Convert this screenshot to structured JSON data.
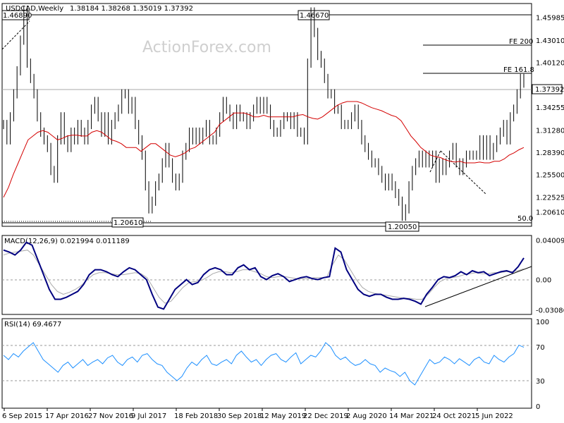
{
  "header": {
    "symbol_label": "USDCAD,Weekly",
    "ohlc": "1.38184 1.38268 1.35019 1.37392"
  },
  "watermark": "ActionForex.com",
  "chart_data": [
    {
      "type": "line",
      "panel": "price",
      "title": "USDCAD,Weekly 1.38184 1.38268 1.35019 1.37392",
      "ylim": [
        1.19,
        1.475
      ],
      "y_ticks": [
        "1.45985",
        "1.43010",
        "1.40120",
        "1.37392",
        "1.34255",
        "1.31280",
        "1.28390",
        "1.25500",
        "1.22525",
        "1.20610"
      ],
      "x_ticks": [
        "6 Sep 2015",
        "17 Apr 2016",
        "27 Nov 2016",
        "9 Jul 2017",
        "18 Feb 2018",
        "30 Sep 2018",
        "12 May 2019",
        "22 Dec 2019",
        "2 Aug 2020",
        "14 Mar 2021",
        "24 Oct 2021",
        "5 Jun 2022"
      ],
      "current_price": "1.37392",
      "horizontal_levels": [
        {
          "label": "FE 200",
          "value": 1.4301
        },
        {
          "label": "FE 161.8",
          "value": 1.3918
        },
        {
          "label": "50.0",
          "value": 1.2061
        }
      ],
      "annotations": [
        "1.46890",
        "1.46670",
        "1.20610",
        "1.20050"
      ],
      "series": [
        {
          "values": [
            1.32,
            1.3,
            1.33,
            1.36,
            1.39,
            1.43,
            1.469,
            1.4,
            1.38,
            1.36,
            1.33,
            1.31,
            1.3,
            1.29,
            1.26,
            1.25,
            1.3,
            1.33,
            1.3,
            1.29,
            1.31,
            1.3,
            1.32,
            1.31,
            1.3,
            1.32,
            1.34,
            1.35,
            1.33,
            1.31,
            1.33,
            1.3,
            1.32,
            1.33,
            1.34,
            1.36,
            1.36,
            1.34,
            1.35,
            1.32,
            1.3,
            1.28,
            1.24,
            1.21,
            1.22,
            1.24,
            1.25,
            1.27,
            1.29,
            1.27,
            1.25,
            1.24,
            1.25,
            1.28,
            1.29,
            1.31,
            1.3,
            1.31,
            1.3,
            1.31,
            1.32,
            1.3,
            1.3,
            1.31,
            1.33,
            1.35,
            1.34,
            1.33,
            1.32,
            1.34,
            1.33,
            1.33,
            1.32,
            1.33,
            1.34,
            1.35,
            1.34,
            1.35,
            1.34,
            1.32,
            1.31,
            1.31,
            1.32,
            1.33,
            1.33,
            1.32,
            1.33,
            1.31,
            1.31,
            1.3,
            1.4,
            1.4667,
            1.44,
            1.41,
            1.4,
            1.38,
            1.36,
            1.36,
            1.34,
            1.34,
            1.32,
            1.32,
            1.32,
            1.33,
            1.34,
            1.32,
            1.3,
            1.29,
            1.28,
            1.27,
            1.27,
            1.26,
            1.25,
            1.24,
            1.25,
            1.24,
            1.23,
            1.22,
            1.2005,
            1.21,
            1.24,
            1.26,
            1.27,
            1.28,
            1.27,
            1.28,
            1.27,
            1.28,
            1.25,
            1.27,
            1.26,
            1.27,
            1.28,
            1.29,
            1.27,
            1.26,
            1.27,
            1.28,
            1.28,
            1.28,
            1.28,
            1.3,
            1.28,
            1.3,
            1.28,
            1.29,
            1.3,
            1.31,
            1.32,
            1.3,
            1.33,
            1.34,
            1.36,
            1.38,
            1.374
          ]
        },
        {
          "values": [
            1.225,
            1.238,
            1.255,
            1.27,
            1.285,
            1.3,
            1.305,
            1.31,
            1.312,
            1.31,
            1.305,
            1.3,
            1.302,
            1.305,
            1.306,
            1.306,
            1.305,
            1.305,
            1.31,
            1.312,
            1.31,
            1.305,
            1.3,
            1.298,
            1.295,
            1.29,
            1.29,
            1.29,
            1.285,
            1.29,
            1.295,
            1.295,
            1.29,
            1.285,
            1.28,
            1.278,
            1.28,
            1.283,
            1.288,
            1.29,
            1.295,
            1.3,
            1.305,
            1.31,
            1.32,
            1.325,
            1.33,
            1.335,
            1.335,
            1.335,
            1.333,
            1.33,
            1.33,
            1.332,
            1.33,
            1.33,
            1.33,
            1.33,
            1.33,
            1.33,
            1.332,
            1.333,
            1.33,
            1.328,
            1.327,
            1.33,
            1.335,
            1.34,
            1.345,
            1.348,
            1.35,
            1.35,
            1.35,
            1.348,
            1.345,
            1.342,
            1.34,
            1.338,
            1.335,
            1.332,
            1.33,
            1.325,
            1.315,
            1.305,
            1.298,
            1.29,
            1.285,
            1.28,
            1.278,
            1.277,
            1.274,
            1.272,
            1.271,
            1.272,
            1.27,
            1.27,
            1.27,
            1.271,
            1.27,
            1.27,
            1.272,
            1.272,
            1.275,
            1.28,
            1.283,
            1.287,
            1.29
          ]
        }
      ]
    },
    {
      "type": "line",
      "panel": "macd",
      "title": "MACD(12,26,9) 0.021994 0.011189",
      "ylim": [
        -0.034,
        0.042
      ],
      "y_ticks": [
        "0.040094",
        "0.00",
        "-0.03086"
      ],
      "series": [
        {
          "values": [
            0.03,
            0.028,
            0.025,
            0.03,
            0.038,
            0.035,
            0.02,
            0.005,
            -0.01,
            -0.02,
            -0.02,
            -0.018,
            -0.015,
            -0.012,
            -0.005,
            0.005,
            0.01,
            0.01,
            0.008,
            0.005,
            0.003,
            0.008,
            0.012,
            0.01,
            0.005,
            0.0,
            -0.015,
            -0.028,
            -0.03,
            -0.02,
            -0.01,
            -0.005,
            0.0,
            -0.005,
            -0.003,
            0.005,
            0.01,
            0.012,
            0.01,
            0.005,
            0.005,
            0.012,
            0.015,
            0.01,
            0.012,
            0.003,
            0.0,
            0.004,
            0.006,
            0.003,
            -0.002,
            0.0,
            0.002,
            0.003,
            0.001,
            0.0,
            0.002,
            0.003,
            0.032,
            0.028,
            0.01,
            0.0,
            -0.01,
            -0.015,
            -0.017,
            -0.015,
            -0.015,
            -0.018,
            -0.02,
            -0.02,
            -0.019,
            -0.02,
            -0.022,
            -0.025,
            -0.015,
            -0.008,
            0.0,
            0.003,
            0.002,
            0.004,
            0.008,
            0.005,
            0.009,
            0.007,
            0.008,
            0.004,
            0.006,
            0.008,
            0.009,
            0.007,
            0.013,
            0.022
          ]
        },
        {
          "values": [
            0.025,
            0.027,
            0.028,
            0.029,
            0.03,
            0.025,
            0.015,
            0.005,
            -0.005,
            -0.012,
            -0.015,
            -0.013,
            -0.01,
            -0.006,
            0.0,
            0.005,
            0.007,
            0.007,
            0.006,
            0.005,
            0.005,
            0.006,
            0.007,
            0.006,
            0.002,
            -0.008,
            -0.018,
            -0.024,
            -0.022,
            -0.015,
            -0.008,
            -0.003,
            -0.002,
            -0.001,
            0.002,
            0.006,
            0.008,
            0.008,
            0.007,
            0.008,
            0.01,
            0.01,
            0.008,
            0.006,
            0.003,
            0.002,
            0.003,
            0.003,
            0.002,
            0.001,
            0.001,
            0.001,
            0.002,
            0.002,
            0.002,
            0.015,
            0.025,
            0.02,
            0.01,
            0.0,
            -0.008,
            -0.012,
            -0.014,
            -0.015,
            -0.016,
            -0.017,
            -0.018,
            -0.019,
            -0.019,
            -0.02,
            -0.02,
            -0.015,
            -0.008,
            -0.002,
            0.001,
            0.002,
            0.003,
            0.005,
            0.006,
            0.007,
            0.006,
            0.006,
            0.007,
            0.007,
            0.008,
            0.008,
            0.009,
            0.011
          ]
        }
      ]
    },
    {
      "type": "line",
      "panel": "rsi",
      "title": "RSI(14) 69.4677",
      "ylim": [
        0,
        100
      ],
      "y_ticks": [
        "100",
        "70",
        "30",
        "0"
      ],
      "guide_levels": [
        70,
        30
      ],
      "series": [
        {
          "values": [
            60,
            55,
            62,
            58,
            65,
            70,
            75,
            65,
            55,
            50,
            45,
            40,
            48,
            52,
            45,
            50,
            55,
            48,
            52,
            55,
            50,
            57,
            60,
            52,
            48,
            55,
            58,
            52,
            60,
            62,
            55,
            50,
            48,
            40,
            35,
            30,
            35,
            45,
            52,
            48,
            55,
            60,
            50,
            48,
            52,
            55,
            50,
            60,
            65,
            58,
            52,
            55,
            48,
            55,
            60,
            62,
            55,
            52,
            58,
            63,
            50,
            55,
            60,
            58,
            65,
            75,
            70,
            60,
            55,
            58,
            52,
            48,
            50,
            55,
            50,
            48,
            40,
            45,
            42,
            40,
            35,
            40,
            30,
            25,
            35,
            45,
            55,
            50,
            52,
            58,
            55,
            50,
            56,
            52,
            48,
            55,
            58,
            52,
            50,
            60,
            55,
            52,
            58,
            62,
            72,
            69.5
          ]
        }
      ]
    }
  ]
}
